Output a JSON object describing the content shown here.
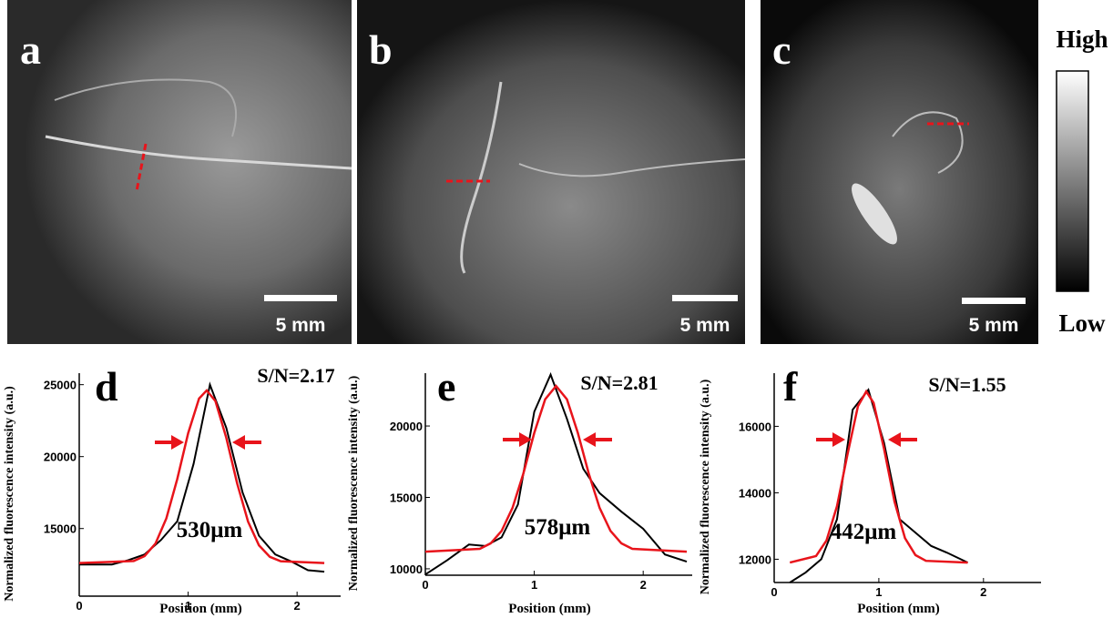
{
  "panels": [
    {
      "label": "a",
      "scale_bar": "5 mm"
    },
    {
      "label": "b",
      "scale_bar": "5 mm"
    },
    {
      "label": "c",
      "scale_bar": "5 mm"
    }
  ],
  "colorbar": {
    "max_label": "High",
    "min_label": "Low"
  },
  "chart_data": [
    {
      "type": "line",
      "panel_label": "d",
      "annotations": [
        "S/N=2.17",
        "530μm"
      ],
      "x_label": "Position (mm)",
      "y_label": "Normalized fluorescence intensity (a.u.)",
      "xlim": [
        0,
        2.4
      ],
      "ylim": [
        10300,
        25800
      ],
      "xticks": [
        0,
        1,
        2
      ],
      "yticks": [
        15000,
        20000,
        25000
      ],
      "series": [
        {
          "color": "#000000",
          "x": [
            0,
            0.3,
            0.45,
            0.6,
            0.75,
            0.9,
            1.05,
            1.2,
            1.35,
            1.5,
            1.65,
            1.8,
            1.95,
            2.1,
            2.25
          ],
          "values": [
            12500,
            12500,
            12800,
            13200,
            14200,
            15500,
            19500,
            25000,
            22000,
            17500,
            14500,
            13200,
            12700,
            12100,
            12000
          ]
        },
        {
          "color": "#e8141b",
          "x": [
            0,
            0.5,
            0.6,
            0.7,
            0.8,
            0.9,
            1.0,
            1.1,
            1.17,
            1.25,
            1.35,
            1.45,
            1.55,
            1.65,
            1.75,
            1.85,
            2.25
          ],
          "values": [
            12600,
            12743,
            13085,
            13956,
            15708,
            18444,
            21624,
            24036,
            24600,
            23868,
            21312,
            18132,
            15480,
            13836,
            13032,
            12726,
            12600
          ]
        }
      ]
    },
    {
      "type": "line",
      "panel_label": "e",
      "annotations": [
        "S/N=2.81",
        "578μm"
      ],
      "x_label": "Position (mm)",
      "y_label": "Normalized fluorescence intensity (a.u.)",
      "xlim": [
        0,
        2.45
      ],
      "ylim": [
        9550,
        23700
      ],
      "xticks": [
        0,
        1,
        2
      ],
      "yticks": [
        10000,
        15000,
        20000
      ],
      "series": [
        {
          "color": "#000000",
          "x": [
            0,
            0.2,
            0.4,
            0.55,
            0.7,
            0.85,
            1.0,
            1.15,
            1.3,
            1.45,
            1.6,
            1.8,
            2.0,
            2.2,
            2.4
          ],
          "values": [
            9600,
            10600,
            11700,
            11600,
            12200,
            14500,
            21000,
            23600,
            20500,
            17000,
            15300,
            14000,
            12800,
            11000,
            10500
          ]
        },
        {
          "color": "#e8141b",
          "x": [
            0,
            0.5,
            0.6,
            0.7,
            0.8,
            0.9,
            1.0,
            1.1,
            1.2,
            1.3,
            1.4,
            1.5,
            1.6,
            1.7,
            1.8,
            1.9,
            2.4
          ],
          "values": [
            11200,
            11396,
            11778,
            12650,
            14262,
            16675,
            19517,
            21872,
            22800,
            21872,
            19517,
            16675,
            14262,
            12650,
            11778,
            11396,
            11200
          ]
        }
      ]
    },
    {
      "type": "line",
      "panel_label": "f",
      "annotations": [
        "S/N=1.55",
        "442μm"
      ],
      "x_label": "Position (mm)",
      "y_label": "Normalized fluorescence intensity (a.u.)",
      "xlim": [
        0,
        2.55
      ],
      "ylim": [
        11300,
        17600
      ],
      "xticks": [
        0,
        1,
        2
      ],
      "yticks": [
        12000,
        14000,
        16000
      ],
      "series": [
        {
          "color": "#000000",
          "x": [
            0.15,
            0.3,
            0.45,
            0.6,
            0.75,
            0.9,
            1.05,
            1.2,
            1.35,
            1.5,
            1.65,
            1.85
          ],
          "values": [
            11300,
            11600,
            12000,
            13200,
            16500,
            17100,
            15500,
            13200,
            12800,
            12400,
            12200,
            11900
          ]
        },
        {
          "color": "#e8141b",
          "x": [
            0.15,
            0.4,
            0.5,
            0.6,
            0.7,
            0.8,
            0.88,
            0.95,
            1.05,
            1.15,
            1.25,
            1.35,
            1.45,
            1.85
          ],
          "values": [
            11900,
            12096,
            12564,
            13594,
            15150,
            16602,
            17050,
            16705,
            15320,
            13733,
            12636,
            12125,
            11952,
            11900
          ]
        }
      ]
    }
  ]
}
